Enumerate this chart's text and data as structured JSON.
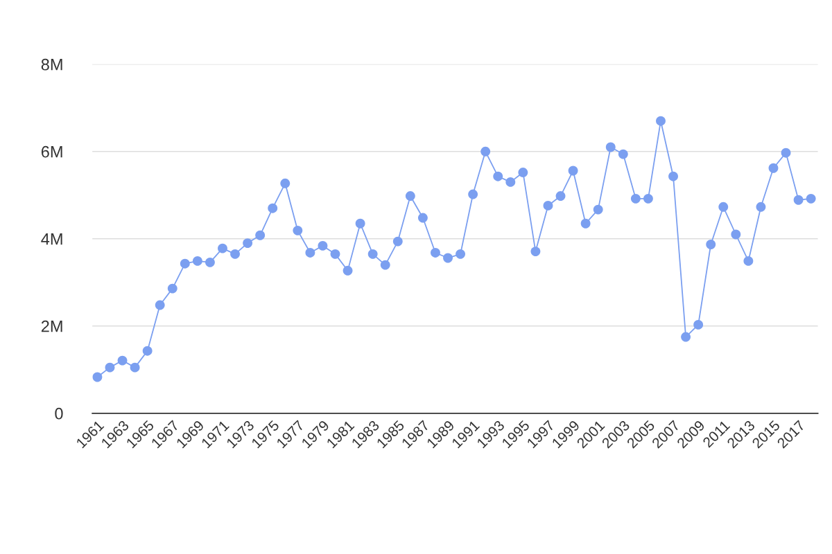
{
  "chart_data": {
    "type": "line",
    "categories": [
      "1961",
      null,
      "1963",
      null,
      "1965",
      null,
      "1967",
      null,
      "1969",
      null,
      "1971",
      null,
      "1973",
      null,
      "1975",
      null,
      "1977",
      null,
      "1979",
      null,
      "1981",
      null,
      "1983",
      null,
      "1985",
      null,
      "1987",
      null,
      "1989",
      null,
      "1991",
      null,
      "1993",
      null,
      "1995",
      null,
      "1997",
      null,
      "1999",
      null,
      "2001",
      null,
      "2003",
      null,
      "2005",
      null,
      "2007",
      null,
      "2009",
      null,
      "2011",
      null,
      "2013",
      null,
      "2015",
      null,
      "2017",
      null
    ],
    "series": [
      {
        "color": "#7b9ff0",
        "values": [
          830000,
          1050000,
          1210000,
          1050000,
          1430000,
          2480000,
          2860000,
          3430000,
          3490000,
          3460000,
          3780000,
          3650000,
          3900000,
          4080000,
          4700000,
          5270000,
          4190000,
          3680000,
          3840000,
          3650000,
          3270000,
          4350000,
          3650000,
          3400000,
          3940000,
          4980000,
          4480000,
          3680000,
          3560000,
          3650000,
          5020000,
          6000000,
          5430000,
          5300000,
          5520000,
          3710000,
          4760000,
          4980000,
          5560000,
          4350000,
          4670000,
          6100000,
          5940000,
          4920000,
          4920000,
          6700000,
          5430000,
          1750000,
          2030000,
          3870000,
          4730000,
          4100000,
          3490000,
          4730000,
          5620000,
          5970000,
          4890000,
          4920000
        ]
      }
    ],
    "ylim": [
      0,
      8000000
    ],
    "yticks": [
      {
        "value": 0,
        "label": "0"
      },
      {
        "value": 2000000,
        "label": "2M"
      },
      {
        "value": 4000000,
        "label": "4M"
      },
      {
        "value": 6000000,
        "label": "6M"
      },
      {
        "value": 8000000,
        "label": "8M"
      }
    ],
    "grid": "y",
    "marker": "circle",
    "line_style": "solid"
  }
}
